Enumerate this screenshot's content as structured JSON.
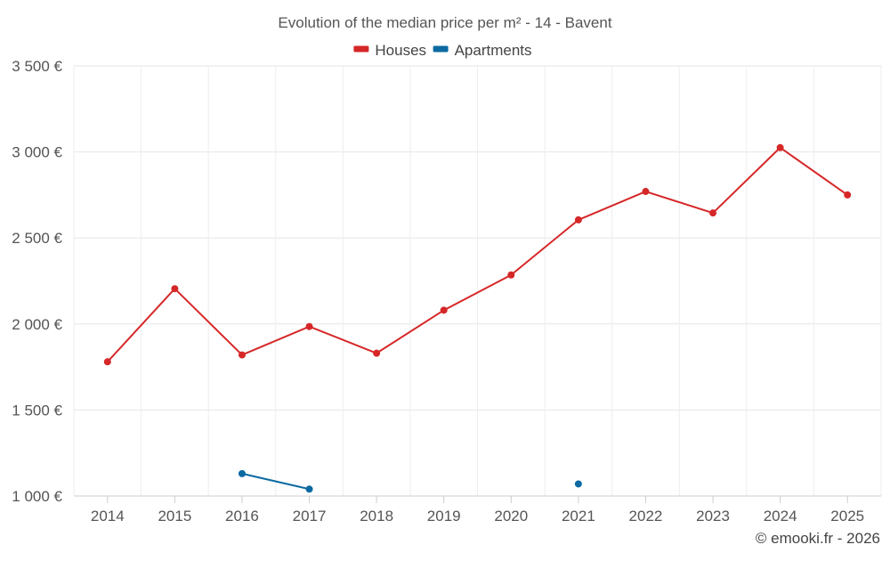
{
  "chart_data": {
    "type": "line",
    "title": "Evolution of the median price per m² - 14 - Bavent",
    "xlabel": "",
    "ylabel": "",
    "categories": [
      "2014",
      "2015",
      "2016",
      "2017",
      "2018",
      "2019",
      "2020",
      "2021",
      "2022",
      "2023",
      "2024",
      "2025"
    ],
    "ylim": [
      1000,
      3500
    ],
    "yticks": [
      1000,
      1500,
      2000,
      2500,
      3000,
      3500
    ],
    "ytick_labels": [
      "1 000 €",
      "1 500 €",
      "2 000 €",
      "2 500 €",
      "3 000 €",
      "3 500 €"
    ],
    "grid": true,
    "legend_position": "top-center",
    "series": [
      {
        "name": "Houses",
        "color": "#d62728",
        "values": [
          1780,
          2205,
          1820,
          1985,
          1830,
          2080,
          2285,
          2605,
          2770,
          2645,
          3025,
          2750
        ]
      },
      {
        "name": "Apartments",
        "color": "#0b6aa2",
        "values": [
          null,
          null,
          1130,
          1040,
          null,
          null,
          null,
          1070,
          null,
          null,
          null,
          null
        ]
      }
    ],
    "credit": "© emooki.fr - 2026"
  }
}
